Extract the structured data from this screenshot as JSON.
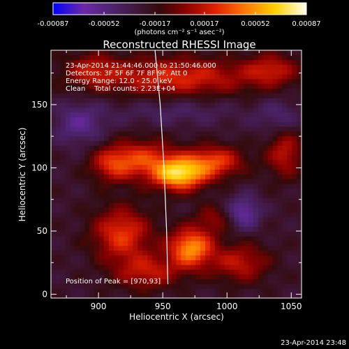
{
  "chart_data": {
    "type": "heatmap",
    "title": "Reconstructed RHESSI Image",
    "xlabel": "Heliocentric X (arcsec)",
    "ylabel": "Heliocentric Y (arcsec)",
    "xlim": [
      863,
      1058
    ],
    "ylim": [
      -3,
      193
    ],
    "x_ticks": [
      900,
      950,
      1000,
      1050
    ],
    "y_ticks": [
      0,
      50,
      100,
      150
    ],
    "colorbar": {
      "min": -0.00087,
      "max": 0.00087,
      "ticks": [
        "-0.00087",
        "-0.00052",
        "-0.00017",
        "0.00017",
        "0.00052",
        "0.00087"
      ],
      "unit_label": "(photons cm⁻² s⁻¹ asec⁻²)"
    },
    "annotations": [
      "23-Apr-2014 21:44:46.000 to 21:50:46.000",
      "Detectors: 3F 5F 6F 7F 8F 9F, Att 0",
      "Energy Range: 12.0 - 25.0 keV",
      "Clean    Total counts: 2.23E+04"
    ],
    "peak_label": "Position of Peak = [970,93]",
    "peak_position": [
      970,
      93
    ],
    "limb_curve": [
      [
        944,
        193
      ],
      [
        948,
        150
      ],
      [
        951,
        100
      ],
      [
        953,
        50
      ],
      [
        954,
        8
      ]
    ],
    "sources": [
      {
        "x": 963,
        "y": 95,
        "sx": 14,
        "sy": 9,
        "amp": 1.0
      },
      {
        "x": 990,
        "y": 105,
        "sx": 16,
        "sy": 9,
        "amp": 0.62
      },
      {
        "x": 935,
        "y": 107,
        "sx": 18,
        "sy": 11,
        "amp": 0.55
      },
      {
        "x": 910,
        "y": 103,
        "sx": 12,
        "sy": 10,
        "amp": 0.45
      },
      {
        "x": 972,
        "y": 37,
        "sx": 12,
        "sy": 11,
        "amp": 0.85
      },
      {
        "x": 918,
        "y": 48,
        "sx": 16,
        "sy": 15,
        "amp": 0.6
      },
      {
        "x": 938,
        "y": 18,
        "sx": 18,
        "sy": 10,
        "amp": 0.45
      },
      {
        "x": 1010,
        "y": 25,
        "sx": 16,
        "sy": 11,
        "amp": 0.45
      },
      {
        "x": 1045,
        "y": 112,
        "sx": 10,
        "sy": 14,
        "amp": 0.45
      },
      {
        "x": 960,
        "y": 172,
        "sx": 45,
        "sy": 11,
        "amp": 0.55
      },
      {
        "x": 895,
        "y": 178,
        "sx": 14,
        "sy": 9,
        "amp": 0.35
      },
      {
        "x": 1035,
        "y": 178,
        "sx": 14,
        "sy": 9,
        "amp": 0.4
      },
      {
        "x": 990,
        "y": 60,
        "sx": 10,
        "sy": 8,
        "amp": 0.3
      },
      {
        "x": 1013,
        "y": 65,
        "sx": 9,
        "sy": 9,
        "amp": -0.45
      },
      {
        "x": 885,
        "y": 135,
        "sx": 14,
        "sy": 12,
        "amp": -0.35
      },
      {
        "x": 960,
        "y": 145,
        "sx": 35,
        "sy": 8,
        "amp": -0.2
      },
      {
        "x": 1040,
        "y": 140,
        "sx": 12,
        "sy": 10,
        "amp": -0.25
      }
    ]
  },
  "timestamp": "23-Apr-2014 23:48"
}
